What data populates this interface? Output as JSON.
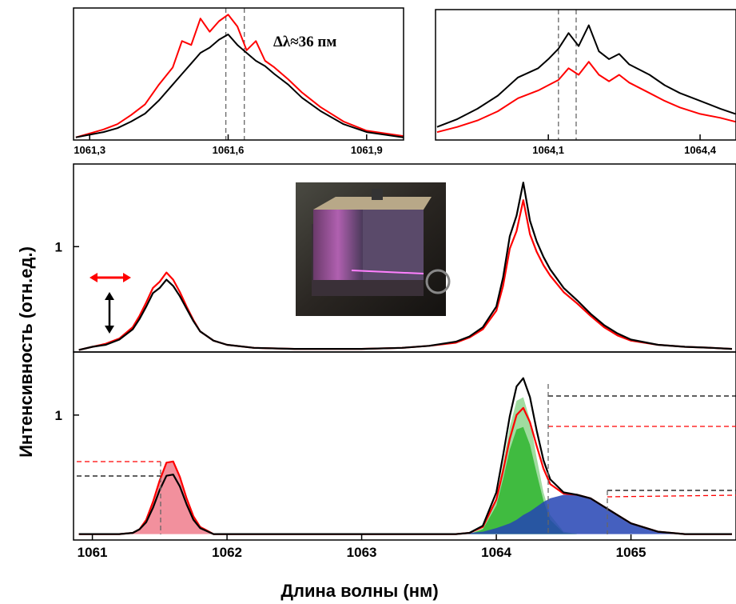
{
  "chart_data": [
    {
      "type": "line",
      "annotation": "Δλ≈36 пм",
      "x": [
        1061.27,
        1061.3,
        1061.33,
        1061.36,
        1061.39,
        1061.42,
        1061.45,
        1061.48,
        1061.5,
        1061.52,
        1061.54,
        1061.56,
        1061.58,
        1061.6,
        1061.62,
        1061.64,
        1061.66,
        1061.68,
        1061.7,
        1061.73,
        1061.76,
        1061.8,
        1061.85,
        1061.9,
        1061.98
      ],
      "xlim": [
        1061.265,
        1061.98
      ],
      "ylim": [
        0,
        1
      ],
      "xticks": [
        {
          "value": 1061.3,
          "label": "1061,3"
        },
        {
          "value": 1061.6,
          "label": "1061,6"
        },
        {
          "value": 1061.9,
          "label": "1061,9"
        }
      ],
      "vlines": [
        1061.595,
        1061.635
      ],
      "series": [
        {
          "color": "#ff0000",
          "values": [
            0.02,
            0.05,
            0.08,
            0.12,
            0.19,
            0.27,
            0.42,
            0.55,
            0.75,
            0.72,
            0.92,
            0.82,
            0.9,
            0.95,
            0.86,
            0.68,
            0.75,
            0.6,
            0.55,
            0.46,
            0.36,
            0.25,
            0.14,
            0.07,
            0.03
          ]
        },
        {
          "color": "#000000",
          "values": [
            0.02,
            0.04,
            0.06,
            0.09,
            0.14,
            0.2,
            0.3,
            0.42,
            0.5,
            0.58,
            0.66,
            0.7,
            0.76,
            0.8,
            0.72,
            0.66,
            0.6,
            0.56,
            0.5,
            0.42,
            0.32,
            0.22,
            0.12,
            0.06,
            0.02
          ]
        }
      ]
    },
    {
      "type": "line",
      "x": [
        1063.88,
        1063.92,
        1063.96,
        1064.0,
        1064.04,
        1064.08,
        1064.1,
        1064.12,
        1064.14,
        1064.16,
        1064.18,
        1064.2,
        1064.22,
        1064.24,
        1064.26,
        1064.28,
        1064.3,
        1064.33,
        1064.36,
        1064.4,
        1064.44,
        1064.47
      ],
      "xlim": [
        1063.877,
        1064.471
      ],
      "ylim": [
        0,
        1
      ],
      "xticks": [
        {
          "value": 1064.1,
          "label": "1064,1"
        },
        {
          "value": 1064.4,
          "label": "1064,4"
        }
      ],
      "vlines": [
        1064.12,
        1064.155
      ],
      "series": [
        {
          "color": "#000000",
          "values": [
            0.1,
            0.16,
            0.24,
            0.34,
            0.48,
            0.55,
            0.62,
            0.7,
            0.82,
            0.72,
            0.88,
            0.68,
            0.62,
            0.66,
            0.58,
            0.54,
            0.5,
            0.42,
            0.36,
            0.3,
            0.24,
            0.2
          ]
        },
        {
          "color": "#ff0000",
          "values": [
            0.06,
            0.1,
            0.15,
            0.22,
            0.32,
            0.38,
            0.42,
            0.46,
            0.55,
            0.5,
            0.6,
            0.5,
            0.45,
            0.5,
            0.44,
            0.4,
            0.36,
            0.3,
            0.25,
            0.2,
            0.17,
            0.14
          ]
        }
      ]
    },
    {
      "type": "line",
      "x": [
        1060.9,
        1061.0,
        1061.1,
        1061.2,
        1061.3,
        1061.35,
        1061.4,
        1061.45,
        1061.5,
        1061.55,
        1061.6,
        1061.65,
        1061.7,
        1061.75,
        1061.8,
        1061.9,
        1062.0,
        1062.2,
        1062.5,
        1063.0,
        1063.3,
        1063.5,
        1063.7,
        1063.8,
        1063.9,
        1064.0,
        1064.05,
        1064.1,
        1064.15,
        1064.2,
        1064.25,
        1064.3,
        1064.35,
        1064.4,
        1064.5,
        1064.6,
        1064.7,
        1064.8,
        1064.9,
        1065.0,
        1065.2,
        1065.4,
        1065.6,
        1065.75
      ],
      "xlim": [
        1060.86,
        1065.78
      ],
      "ylim": [
        -0.02,
        1.8
      ],
      "yticks": [
        1
      ],
      "series": [
        {
          "color": "#ff0000",
          "values": [
            0.0,
            0.03,
            0.06,
            0.11,
            0.22,
            0.33,
            0.46,
            0.6,
            0.66,
            0.75,
            0.68,
            0.56,
            0.42,
            0.29,
            0.18,
            0.09,
            0.05,
            0.02,
            0.01,
            0.01,
            0.02,
            0.04,
            0.07,
            0.12,
            0.2,
            0.38,
            0.62,
            0.98,
            1.15,
            1.45,
            1.12,
            0.95,
            0.82,
            0.72,
            0.56,
            0.45,
            0.33,
            0.22,
            0.14,
            0.09,
            0.05,
            0.03,
            0.02,
            0.01
          ]
        },
        {
          "color": "#000000",
          "values": [
            0.0,
            0.03,
            0.05,
            0.1,
            0.2,
            0.3,
            0.42,
            0.55,
            0.6,
            0.68,
            0.62,
            0.52,
            0.4,
            0.28,
            0.18,
            0.09,
            0.05,
            0.02,
            0.01,
            0.01,
            0.02,
            0.04,
            0.08,
            0.13,
            0.22,
            0.42,
            0.7,
            1.1,
            1.3,
            1.62,
            1.25,
            1.05,
            0.9,
            0.78,
            0.6,
            0.48,
            0.35,
            0.24,
            0.16,
            0.1,
            0.05,
            0.03,
            0.02,
            0.01
          ]
        }
      ]
    },
    {
      "type": "line",
      "xlabel": "Длина волны (нм)",
      "ylabel": "Интенсивность (отн.ед.)",
      "x": [
        1060.9,
        1061.0,
        1061.1,
        1061.2,
        1061.3,
        1061.35,
        1061.4,
        1061.45,
        1061.5,
        1061.55,
        1061.6,
        1061.65,
        1061.7,
        1061.75,
        1061.8,
        1061.9,
        1062.0,
        1062.2,
        1062.5,
        1063.0,
        1063.3,
        1063.5,
        1063.7,
        1063.8,
        1063.9,
        1064.0,
        1064.05,
        1064.1,
        1064.15,
        1064.2,
        1064.25,
        1064.3,
        1064.35,
        1064.4,
        1064.5,
        1064.6,
        1064.7,
        1064.8,
        1064.9,
        1065.0,
        1065.2,
        1065.4,
        1065.6,
        1065.75
      ],
      "xlim": [
        1060.86,
        1065.78
      ],
      "ylim": [
        -0.05,
        1.53
      ],
      "yticks": [
        1
      ],
      "xticks": [
        1061,
        1062,
        1063,
        1064,
        1065
      ],
      "series": [
        {
          "color": "#f07c8c",
          "area": true,
          "values": [
            0,
            0,
            0,
            0,
            0.01,
            0.04,
            0.12,
            0.27,
            0.45,
            0.6,
            0.61,
            0.48,
            0.3,
            0.15,
            0.06,
            0,
            0,
            0,
            0,
            0,
            0,
            0,
            0,
            0,
            0,
            0,
            0,
            0,
            0,
            0,
            0,
            0,
            0,
            0,
            0,
            0,
            0,
            0,
            0,
            0,
            0,
            0,
            0,
            0
          ]
        },
        {
          "color": "#8fd68f",
          "area": true,
          "values": [
            0,
            0,
            0,
            0,
            0,
            0,
            0,
            0,
            0,
            0,
            0,
            0,
            0,
            0,
            0,
            0,
            0,
            0,
            0,
            0,
            0,
            0,
            0,
            0,
            0.05,
            0.3,
            0.59,
            0.9,
            1.12,
            1.15,
            0.96,
            0.64,
            0.35,
            0.16,
            0.02,
            0,
            0,
            0,
            0,
            0,
            0,
            0,
            0,
            0
          ]
        },
        {
          "color": "#2fb52f",
          "area": true,
          "values": [
            0,
            0,
            0,
            0,
            0,
            0,
            0,
            0,
            0,
            0,
            0,
            0,
            0,
            0,
            0,
            0,
            0,
            0,
            0,
            0,
            0,
            0,
            0,
            0,
            0.04,
            0.24,
            0.46,
            0.71,
            0.88,
            0.9,
            0.75,
            0.51,
            0.28,
            0.12,
            0.01,
            0,
            0,
            0,
            0,
            0,
            0,
            0,
            0,
            0
          ]
        },
        {
          "color": "#2444b4",
          "area": true,
          "values": [
            0,
            0,
            0,
            0,
            0,
            0,
            0,
            0,
            0,
            0,
            0,
            0,
            0,
            0,
            0,
            0,
            0,
            0,
            0,
            0,
            0,
            0,
            0,
            0.01,
            0.02,
            0.05,
            0.07,
            0.09,
            0.12,
            0.16,
            0.19,
            0.23,
            0.27,
            0.3,
            0.33,
            0.33,
            0.3,
            0.23,
            0.16,
            0.09,
            0.02,
            0,
            0,
            0
          ]
        },
        {
          "color": "#ff0000",
          "values": [
            0,
            0,
            0,
            0,
            0.01,
            0.04,
            0.12,
            0.27,
            0.45,
            0.6,
            0.61,
            0.48,
            0.3,
            0.15,
            0.06,
            0,
            0,
            0,
            0,
            0,
            0,
            0,
            0,
            0.01,
            0.06,
            0.29,
            0.53,
            0.8,
            1.0,
            1.06,
            0.94,
            0.74,
            0.55,
            0.42,
            0.34,
            0.33,
            0.3,
            0.23,
            0.16,
            0.09,
            0.02,
            0,
            0,
            0
          ]
        },
        {
          "color": "#000000",
          "values": [
            0,
            0,
            0,
            0,
            0.01,
            0.04,
            0.1,
            0.22,
            0.37,
            0.49,
            0.5,
            0.4,
            0.25,
            0.12,
            0.05,
            0,
            0,
            0,
            0,
            0,
            0,
            0,
            0,
            0.01,
            0.07,
            0.35,
            0.66,
            0.99,
            1.24,
            1.31,
            1.15,
            0.87,
            0.62,
            0.46,
            0.35,
            0.33,
            0.3,
            0.23,
            0.16,
            0.09,
            0.02,
            0,
            0,
            0
          ]
        }
      ]
    }
  ]
}
